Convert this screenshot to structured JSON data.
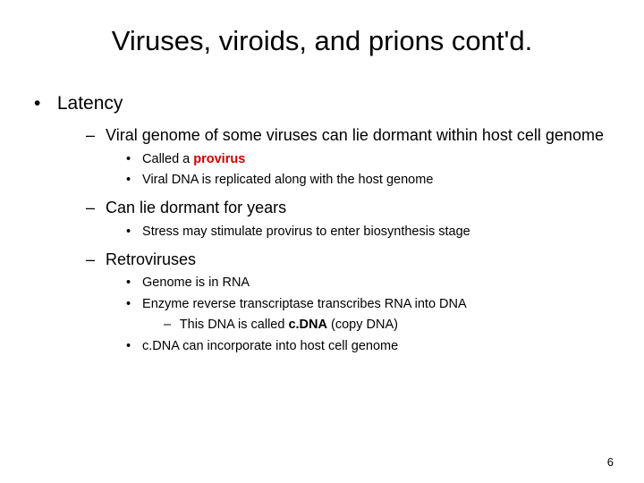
{
  "title": "Viruses, viroids, and prions cont'd.",
  "colors": {
    "accent": "#cc0000",
    "text": "#000000",
    "bg": "#ffffff"
  },
  "fontsizes": {
    "title": 31,
    "l1": 21,
    "l2": 18,
    "l3": 14.5,
    "l4": 14.5,
    "pagenum": 13
  },
  "l1_item": "Latency",
  "l2": {
    "a": "Viral genome of some viruses can lie dormant within host cell genome",
    "a_sub": {
      "i_pre": "Called a ",
      "i_term": "provirus",
      "ii": "Viral DNA is replicated along with the host genome"
    },
    "b": "Can lie dormant for years",
    "b_sub": {
      "i": "Stress may stimulate provirus to enter biosynthesis stage"
    },
    "c": "Retroviruses",
    "c_sub": {
      "i": "Genome is in RNA",
      "ii": "Enzyme reverse transcriptase transcribes RNA into DNA",
      "ii_sub_pre": "This DNA is called ",
      "ii_sub_term": "c.DNA",
      "ii_sub_post": " (copy DNA)",
      "iii": "c.DNA can incorporate into host cell genome"
    }
  },
  "page_number": "6"
}
